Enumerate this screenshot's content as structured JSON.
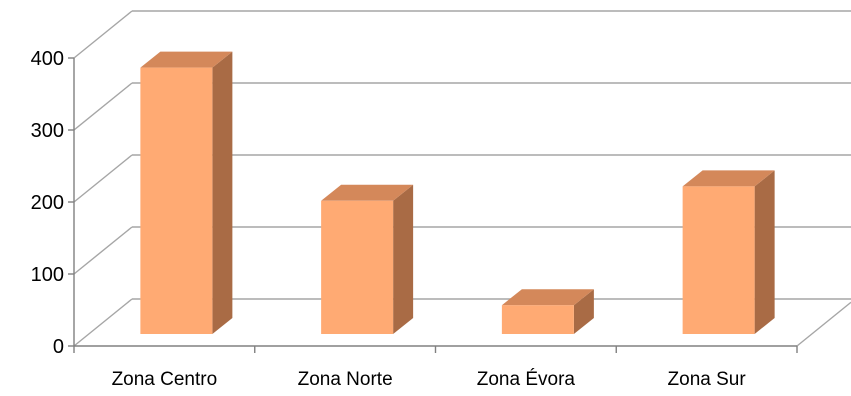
{
  "chart_data": {
    "type": "bar",
    "style": "3d-column",
    "title": "",
    "xlabel": "",
    "ylabel": "",
    "categories": [
      "Zona Centro",
      "Zona Norte",
      "Zona Évora",
      "Zona Sur"
    ],
    "values": [
      370,
      185,
      40,
      205
    ],
    "ylim": [
      0,
      400
    ],
    "yticks": [
      0,
      100,
      200,
      300,
      400
    ],
    "grid": true,
    "legend": "none"
  },
  "colors": {
    "bar_front": "#FFAA73",
    "bar_side": "#A96B45",
    "bar_top": "#D4885A",
    "grid": "#A6A6A6",
    "axis": "#808080"
  }
}
